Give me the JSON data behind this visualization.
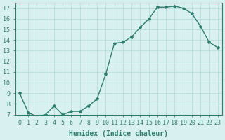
{
  "xlabel": "Humidex (Indice chaleur)",
  "ylabel": "",
  "x": [
    0,
    1,
    2,
    3,
    4,
    5,
    6,
    7,
    8,
    9,
    10,
    11,
    12,
    13,
    14,
    15,
    16,
    17,
    18,
    19,
    20,
    21,
    22,
    23
  ],
  "y": [
    9.0,
    7.2,
    6.8,
    7.0,
    7.8,
    7.0,
    7.3,
    7.3,
    7.8,
    8.5,
    10.8,
    13.7,
    13.8,
    14.3,
    15.2,
    16.0,
    17.1,
    17.1,
    17.2,
    17.0,
    16.5,
    15.3,
    13.8,
    13.3
  ],
  "line_color": "#2e7d6e",
  "marker": "*",
  "marker_size": 3,
  "bg_color": "#d9f0f0",
  "grid_color": "#b0d8d8",
  "ylim": [
    7,
    17.5
  ],
  "yticks": [
    7,
    8,
    9,
    10,
    11,
    12,
    13,
    14,
    15,
    16,
    17
  ],
  "xlim": [
    -0.5,
    23.5
  ],
  "xticks": [
    0,
    1,
    2,
    3,
    4,
    5,
    6,
    7,
    8,
    9,
    10,
    11,
    12,
    13,
    14,
    15,
    16,
    17,
    18,
    19,
    20,
    21,
    22,
    23
  ],
  "xlabel_fontsize": 7,
  "tick_fontsize": 6,
  "tick_color": "#2e7d6e",
  "axis_color": "#2e7d6e"
}
